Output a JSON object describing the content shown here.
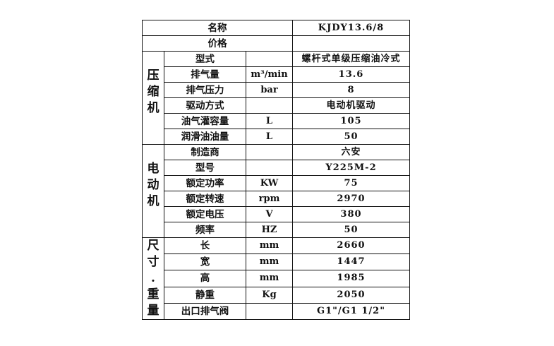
{
  "header": {
    "name_label": "名称",
    "name_value": "KJDY13.6/8",
    "price_label": "价格",
    "price_value": ""
  },
  "groups": [
    {
      "title": "压缩机",
      "title_chars": [
        "压",
        "缩",
        "机"
      ],
      "rows": [
        {
          "label": "型式",
          "unit": "",
          "value": "螺杆式单级压缩油冷式"
        },
        {
          "label": "排气量",
          "unit": "m³/min",
          "value": "13.6"
        },
        {
          "label": "排气压力",
          "unit": "bar",
          "value": "8"
        },
        {
          "label": "驱动方式",
          "unit": "",
          "value": "电动机驱动"
        },
        {
          "label": "油气灌容量",
          "unit": "L",
          "value": "105"
        },
        {
          "label": "润滑油油量",
          "unit": "L",
          "value": "50"
        }
      ]
    },
    {
      "title": "电动机",
      "title_chars": [
        "电",
        "动",
        "机"
      ],
      "rows": [
        {
          "label": "制造商",
          "unit": "",
          "value": "六安"
        },
        {
          "label": "型号",
          "unit": "",
          "value": "Y225M-2"
        },
        {
          "label": "额定功率",
          "unit": "KW",
          "value": "75"
        },
        {
          "label": "额定转速",
          "unit": "rpm",
          "value": "2970"
        },
        {
          "label": "额定电压",
          "unit": "V",
          "value": "380"
        },
        {
          "label": "频率",
          "unit": "HZ",
          "value": "50"
        }
      ]
    },
    {
      "title": "尺寸.重量",
      "title_chars": [
        "尺",
        "寸",
        ".",
        "重",
        "量"
      ],
      "rows": [
        {
          "label": "长",
          "unit": "mm",
          "value": "2660"
        },
        {
          "label": "宽",
          "unit": "mm",
          "value": "1447"
        },
        {
          "label": "高",
          "unit": "mm",
          "value": "1985"
        },
        {
          "label": "静重",
          "unit": "Kg",
          "value": "2050"
        },
        {
          "label": "出口排气阀",
          "unit": "",
          "value": "G1\"/G1 1/2\""
        }
      ]
    }
  ]
}
